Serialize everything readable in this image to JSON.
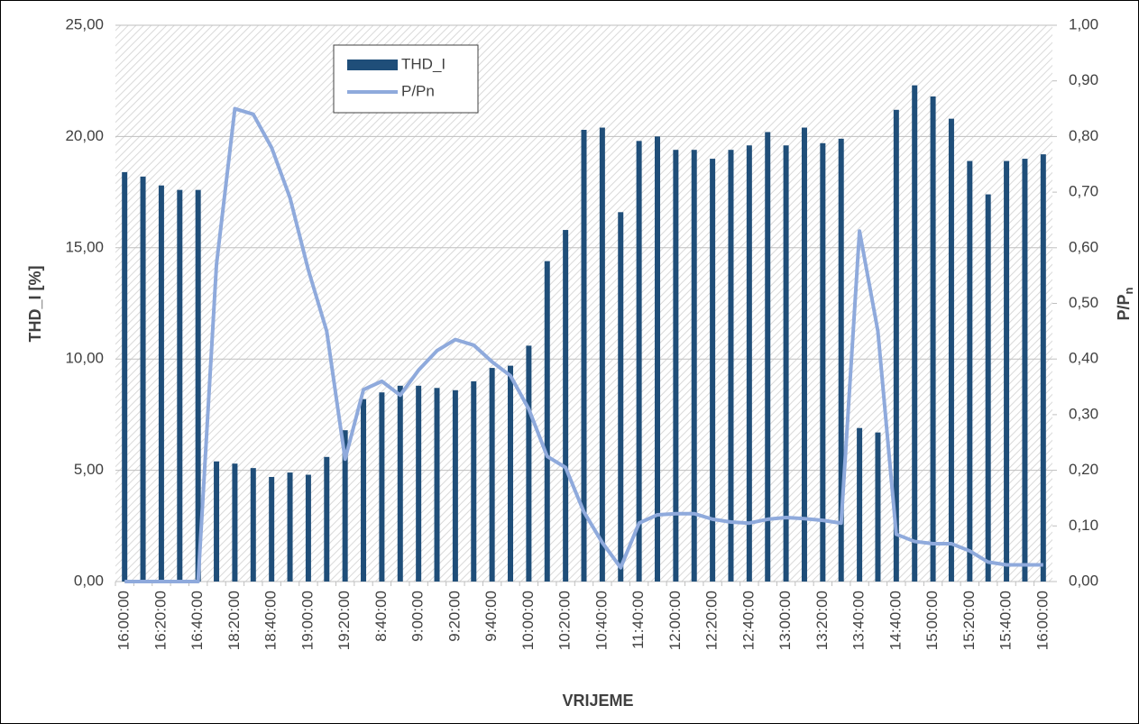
{
  "chart_data": {
    "type": "bar-line",
    "x_label": "VRIJEME",
    "y_label": "THD_I [%]",
    "y2_label": "P/P",
    "y2_label_sub": "n",
    "categories": [
      "16:00:00",
      null,
      "16:20:00",
      null,
      "16:40:00",
      null,
      "18:20:00",
      null,
      "18:40:00",
      null,
      "19:00:00",
      null,
      "19:20:00",
      null,
      "8:40:00",
      null,
      "9:00:00",
      null,
      "9:20:00",
      null,
      "9:40:00",
      null,
      "10:00:00",
      null,
      "10:20:00",
      null,
      "10:40:00",
      null,
      "11:40:00",
      null,
      "12:00:00",
      null,
      "12:20:00",
      null,
      "12:40:00",
      null,
      "13:00:00",
      null,
      "13:20:00",
      null,
      "13:40:00",
      null,
      "14:40:00",
      null,
      "15:00:00",
      null,
      "15:20:00",
      null,
      "15:40:00",
      null,
      "16:00:00"
    ],
    "series": [
      {
        "name": "THD_I",
        "type": "bar",
        "color": "#1f4e79",
        "values": [
          18.4,
          18.2,
          17.8,
          17.6,
          17.6,
          5.4,
          5.3,
          5.1,
          4.7,
          4.9,
          4.8,
          5.6,
          6.8,
          8.2,
          8.5,
          8.8,
          8.8,
          8.7,
          8.6,
          9.0,
          9.6,
          9.7,
          10.6,
          14.4,
          15.8,
          20.3,
          20.4,
          16.6,
          19.8,
          20.0,
          19.4,
          19.4,
          19.0,
          19.4,
          19.6,
          20.2,
          19.6,
          20.4,
          19.7,
          19.9,
          6.9,
          6.7,
          21.2,
          22.3,
          21.8,
          20.8,
          18.9,
          17.4,
          18.9,
          19.0,
          19.2
        ]
      },
      {
        "name": "P/Pn",
        "type": "line",
        "axis": "y2",
        "color": "#8faadc",
        "values": [
          0,
          0,
          0,
          0,
          0,
          0.57,
          0.85,
          0.84,
          0.78,
          0.69,
          0.56,
          0.45,
          0.22,
          0.345,
          0.36,
          0.335,
          0.38,
          0.415,
          0.435,
          0.425,
          0.395,
          0.37,
          0.31,
          0.225,
          0.205,
          0.125,
          0.07,
          0.025,
          0.105,
          0.12,
          0.122,
          0.122,
          0.112,
          0.107,
          0.105,
          0.112,
          0.115,
          0.113,
          0.11,
          0.105,
          0.63,
          0.45,
          0.085,
          0.072,
          0.068,
          0.068,
          0.055,
          0.035,
          0.03,
          0.03,
          0.03
        ]
      }
    ],
    "ylim": [
      0,
      25
    ],
    "yticks": [
      {
        "value": 0,
        "label": "0,00"
      },
      {
        "value": 5,
        "label": "5,00"
      },
      {
        "value": 10,
        "label": "10,00"
      },
      {
        "value": 15,
        "label": "15,00"
      },
      {
        "value": 20,
        "label": "20,00"
      },
      {
        "value": 25,
        "label": "25,00"
      }
    ],
    "y2lim": [
      0,
      1
    ],
    "y2ticks": [
      {
        "value": 0,
        "label": "0,00"
      },
      {
        "value": 0.1,
        "label": "0,10"
      },
      {
        "value": 0.2,
        "label": "0,20"
      },
      {
        "value": 0.3,
        "label": "0,30"
      },
      {
        "value": 0.4,
        "label": "0,40"
      },
      {
        "value": 0.5,
        "label": "0,50"
      },
      {
        "value": 0.6,
        "label": "0,60"
      },
      {
        "value": 0.7,
        "label": "0,70"
      },
      {
        "value": 0.8,
        "label": "0,80"
      },
      {
        "value": 0.9,
        "label": "0,90"
      },
      {
        "value": 1,
        "label": "1,00"
      }
    ],
    "grid": true,
    "legend": "upper left"
  }
}
